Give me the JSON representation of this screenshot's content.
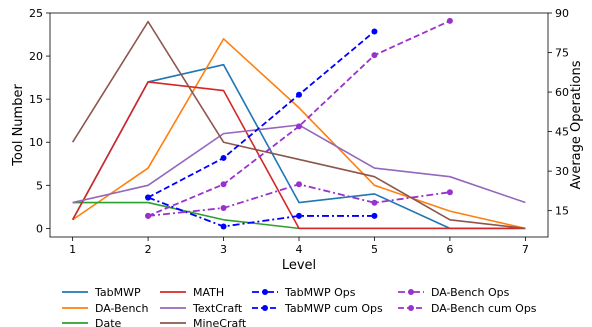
{
  "chart_data": {
    "type": "line",
    "xlabel": "Level",
    "ylabel": "Tool Number",
    "ylabel_right": "Average Operations",
    "x_ticks": [
      1,
      2,
      3,
      4,
      5,
      6,
      7
    ],
    "xlim": [
      0.7,
      7.3
    ],
    "ylim": [
      -1,
      25
    ],
    "y_ticks": [
      0,
      5,
      10,
      15,
      20,
      25
    ],
    "ylim_right": [
      5,
      90
    ],
    "y_ticks_right": [
      15,
      30,
      45,
      60,
      75,
      90
    ],
    "legend_position": "bottom",
    "series": [
      {
        "name": "TabMWP",
        "axis": "left",
        "style": "solid",
        "color": "#1f77b4",
        "x": [
          1,
          2,
          3,
          4,
          5,
          6,
          7
        ],
        "y": [
          1,
          17,
          19,
          3,
          4,
          0,
          0
        ]
      },
      {
        "name": "DA-Bench",
        "axis": "left",
        "style": "solid",
        "color": "#ff7f0e",
        "x": [
          1,
          2,
          3,
          4,
          5,
          6,
          7
        ],
        "y": [
          1,
          7,
          22,
          14,
          5,
          2,
          0
        ]
      },
      {
        "name": "Date",
        "axis": "left",
        "style": "solid",
        "color": "#2ca02c",
        "x": [
          1,
          2,
          3,
          4,
          5,
          6,
          7
        ],
        "y": [
          3,
          3,
          1,
          0,
          0,
          0,
          0
        ]
      },
      {
        "name": "MATH",
        "axis": "left",
        "style": "solid",
        "color": "#d62728",
        "x": [
          1,
          2,
          3,
          4,
          5,
          6,
          7
        ],
        "y": [
          1,
          17,
          16,
          0,
          0,
          0,
          0
        ]
      },
      {
        "name": "TextCraft",
        "axis": "left",
        "style": "solid",
        "color": "#9467bd",
        "x": [
          1,
          2,
          3,
          4,
          5,
          6,
          7
        ],
        "y": [
          3,
          5,
          11,
          12,
          7,
          6,
          3
        ]
      },
      {
        "name": "MineCraft",
        "axis": "left",
        "style": "solid",
        "color": "#8c564b",
        "x": [
          1,
          2,
          3,
          4,
          5,
          6,
          7
        ],
        "y": [
          10,
          24,
          10,
          8,
          6,
          1,
          0
        ]
      },
      {
        "name": "TabMWP Ops",
        "axis": "right",
        "style": "dashdot",
        "color": "#0000ff",
        "x": [
          2,
          3,
          4,
          5
        ],
        "y": [
          20,
          9,
          13,
          13
        ]
      },
      {
        "name": "TabMWP cum Ops",
        "axis": "right",
        "style": "dashed",
        "color": "#0000ff",
        "x": [
          2,
          3,
          4,
          5
        ],
        "y": [
          20,
          35,
          59,
          83
        ]
      },
      {
        "name": "DA-Bench Ops",
        "axis": "right",
        "style": "dashdot",
        "color": "#9932cc",
        "x": [
          2,
          3,
          4,
          5,
          6
        ],
        "y": [
          13,
          16,
          25,
          18,
          22
        ]
      },
      {
        "name": "DA-Bench cum Ops",
        "axis": "right",
        "style": "dashed",
        "color": "#9932cc",
        "x": [
          2,
          3,
          4,
          5,
          6
        ],
        "y": [
          13,
          25,
          47,
          74,
          87
        ]
      }
    ]
  }
}
